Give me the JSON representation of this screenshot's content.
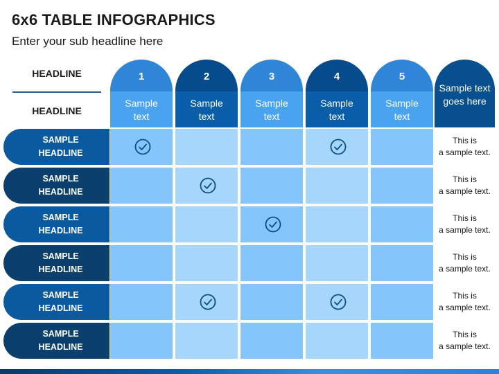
{
  "title": "6x6 TABLE INFOGRAPHICS",
  "subtitle": "Enter your sub headline here",
  "row_head": {
    "top_label": "HEADLINE",
    "bottom_label": "HEADLINE"
  },
  "columns": [
    {
      "number": "1",
      "sub_label": "Sample text"
    },
    {
      "number": "2",
      "sub_label": "Sample text"
    },
    {
      "number": "3",
      "sub_label": "Sample text"
    },
    {
      "number": "4",
      "sub_label": "Sample text"
    },
    {
      "number": "5",
      "sub_label": "Sample text"
    }
  ],
  "last_column_header": "Sample text goes here",
  "rows": [
    {
      "label": "SAMPLE HEADLINE",
      "checks": [
        true,
        false,
        false,
        true,
        false
      ],
      "note": "This is a sample text."
    },
    {
      "label": "SAMPLE HEADLINE",
      "checks": [
        false,
        true,
        false,
        false,
        false
      ],
      "note": "This is a sample text."
    },
    {
      "label": "SAMPLE HEADLINE",
      "checks": [
        false,
        false,
        true,
        false,
        false
      ],
      "note": "This is a sample text."
    },
    {
      "label": "SAMPLE HEADLINE",
      "checks": [
        false,
        false,
        false,
        false,
        false
      ],
      "note": "This is a sample text."
    },
    {
      "label": "SAMPLE HEADLINE",
      "checks": [
        false,
        true,
        false,
        true,
        false
      ],
      "note": "This is a sample text."
    },
    {
      "label": "SAMPLE HEADLINE",
      "checks": [
        false,
        false,
        false,
        false,
        false
      ],
      "note": "This is a sample text."
    }
  ],
  "colors": {
    "cap_light": "#2f86d6",
    "cap_dark": "#064c8c",
    "sub_light": "#4aa3f0",
    "sub_dark": "#0a5da8",
    "cell_a": "#84c5fb",
    "cell_b": "#a6d6fc",
    "row_dark": "#0a3f6e",
    "row_mid": "#0b5aa0",
    "check_color": "#0b4f8a",
    "check_icon": "check-circle"
  }
}
